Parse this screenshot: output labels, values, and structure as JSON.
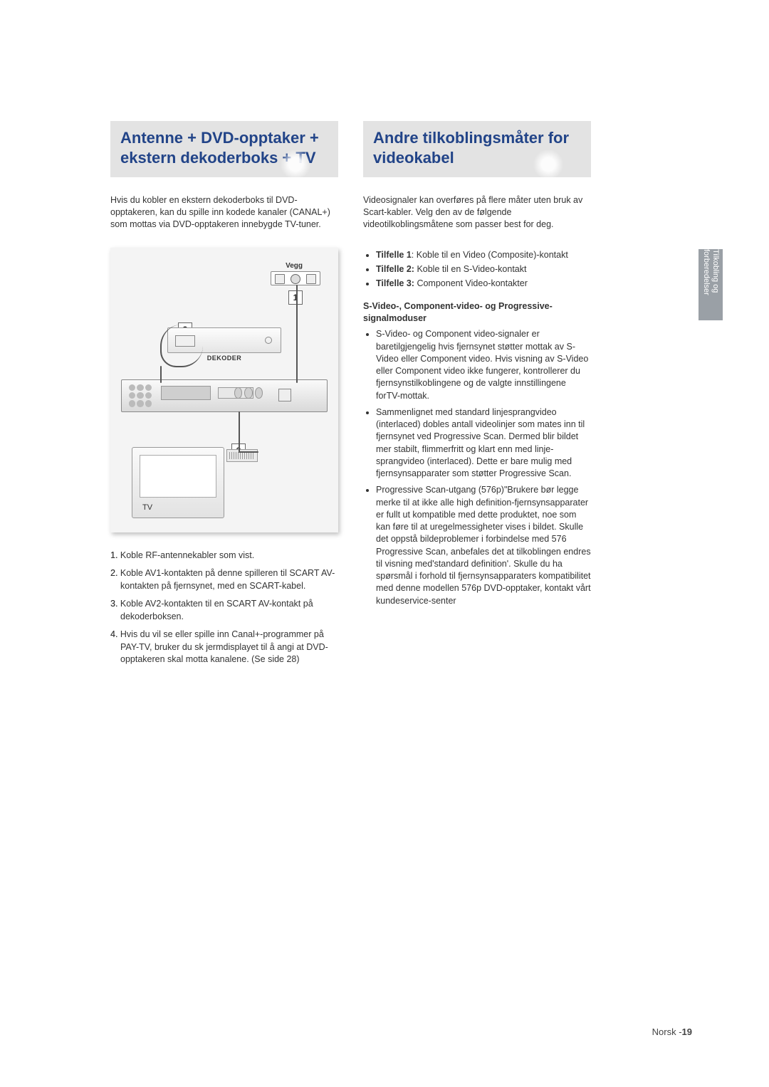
{
  "left": {
    "title": "Antenne + DVD-opptaker + ekstern dekoderboks + TV",
    "intro": "Hvis du kobler en ekstern dekoderboks til DVD-opptakeren, kan du spille inn kodede kanaler (CANAL+) som mottas via DVD-opptakeren innebygde TV-tuner.",
    "diagram": {
      "wall_label": "Vegg",
      "num1": "1",
      "num2": "2",
      "num3": "3",
      "dekoder_label": "DEKODER",
      "tv_label": "TV"
    },
    "steps": [
      "1. Koble RF-antennekabler som vist.",
      "2. Koble AV1-kontakten på denne spilleren til SCART AV-kontakten på fjernsynet, med en SCART-kabel.",
      "3. Koble AV2-kontakten til en SCART AV-kontakt på dekoderboksen.",
      "4. Hvis du vil se eller spille inn Canal+-programmer på PAY-TV, bruker du sk jermdisplayet til å angi at DVD-opptakeren skal motta kanalene. (Se side 28)"
    ]
  },
  "right": {
    "title": "Andre tilkoblingsmåter for videokabel",
    "intro": "Videosignaler kan overføres på flere måter uten bruk av Scart-kabler. Velg den av de følgende videotilkoblingsmåtene som passer best for deg.",
    "cases": [
      {
        "b": "Tilfelle 1",
        "t": ": Koble til en Video (Composite)-kontakt"
      },
      {
        "b": "Tilfelle 2:",
        "t": " Koble til en S-Video-kontakt"
      },
      {
        "b": "Tilfelle 3:",
        "t": " Component Video-kontakter"
      }
    ],
    "subhead": "S-Video-, Component-video- og Progressive-signalmoduser",
    "bullets": [
      "S-Video- og Component video-signaler er baretilgjengelig hvis fjernsynet støtter mottak av S-Video eller Component video. Hvis visning av S-Video eller Component video ikke fungerer, kontrollerer du fjernsynstilkoblingene og de valgte innstillingene forTV-mottak.",
      "Sammenlignet med standard linjesprangvideo (interlaced) dobles antall videolinjer som mates inn til fjernsynet ved Progressive Scan. Dermed blir bildet mer stabilt, flimmerfritt og klart enn med linje-sprangvideo (interlaced). Dette er bare mulig med fjernsynsapparater som støtter Progressive Scan.",
      "Progressive Scan-utgang (576p)\"Brukere bør legge merke til at ikke alle high definition-fjernsynsapparater er fullt ut kompatible med dette produktet, noe som kan føre til at uregelmessigheter  vises i bildet. Skulle det oppstå bildeproblemer i forbindelse med 576 Progressive Scan, anbefales det at tilkoblingen endres til visning med'standard definition'. Skulle du ha spørsmål i forhold til fjernsynsapparaters kompatibilitet med denne modellen 576p DVD-opptaker, kontakt vårt kundeservice-senter"
    ]
  },
  "side_tab": "Tilkobling og forberedelser",
  "footer_lang": "Norsk -",
  "footer_page": "19"
}
